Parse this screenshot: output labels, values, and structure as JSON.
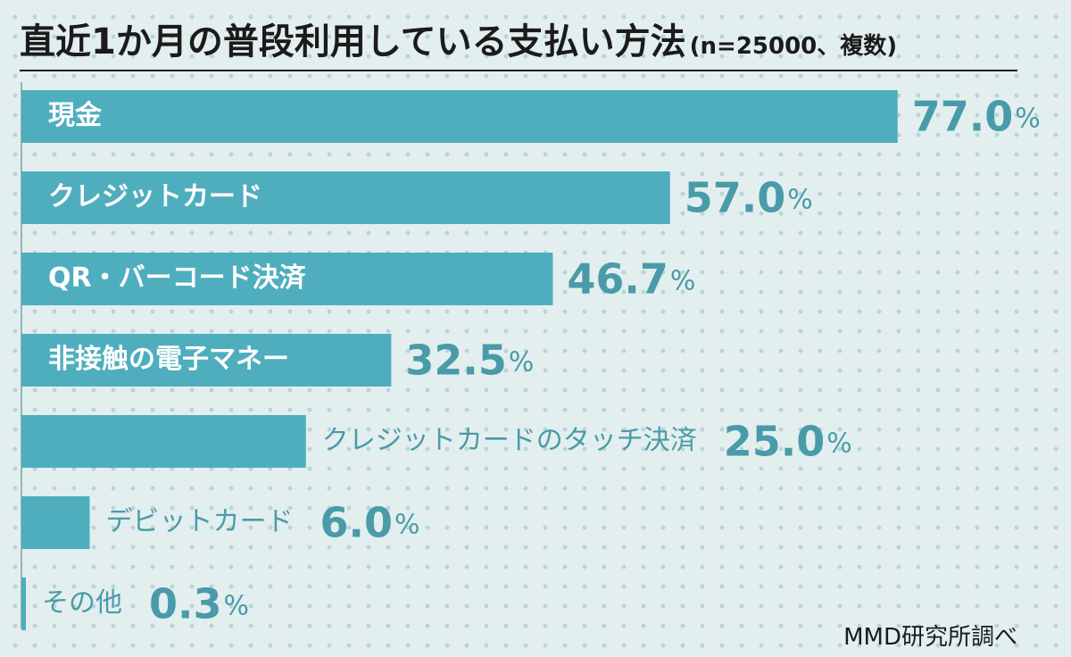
{
  "title": "直近1か月の普段利用している支払い方法",
  "subtitle": "(n=25000、複数)",
  "source": "MMD研究所調べ",
  "chart_data": {
    "type": "bar",
    "orientation": "horizontal",
    "categories": [
      "現金",
      "クレジットカード",
      "QR・バーコード決済",
      "非接触の電子マネー",
      "クレジットカードのタッチ決済",
      "デビットカード",
      "その他"
    ],
    "values": [
      77.0,
      57.0,
      46.7,
      32.5,
      25.0,
      6.0,
      0.3
    ],
    "value_labels": [
      "77.0",
      "57.0",
      "46.7",
      "32.5",
      "25.0",
      "6.0",
      "0.3"
    ],
    "unit": "%",
    "label_position": [
      "inside",
      "inside",
      "inside",
      "inside",
      "outside",
      "outside",
      "outside"
    ],
    "colors": {
      "bar": "#4faebd",
      "value": "#4a9ba9",
      "inside_label": "#ffffff",
      "outside_label": "#4a9ba9",
      "text": "#1b1b1b"
    }
  }
}
